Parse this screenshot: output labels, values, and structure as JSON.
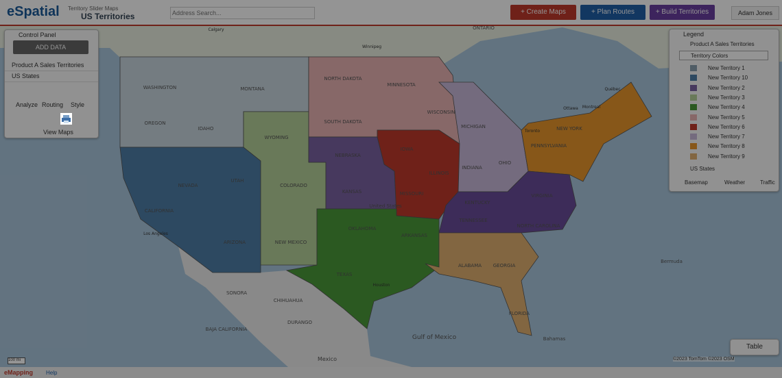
{
  "header": {
    "logo": "eSpatial",
    "map_group": "Territory Slider Maps",
    "map_name": "US Territories",
    "search_placeholder": "Address Search...",
    "buttons": [
      "+ Create Maps",
      "+ Plan Routes",
      "+ Build Territories"
    ],
    "user": "Adam Jones"
  },
  "control_panel": {
    "title": "Control Panel",
    "add_data": "ADD DATA",
    "layers": [
      "Product A Sales Territories",
      "US States"
    ],
    "tools": [
      "Analyze",
      "Routing",
      "Style"
    ],
    "view_maps": "View Maps"
  },
  "legend": {
    "title": "Legend",
    "layer": "Product A Sales Territories",
    "dropdown": "Territory Colors",
    "items": [
      "New Territory 1",
      "New Territory 10",
      "New Territory 2",
      "New Territory 3",
      "New Territory 4",
      "New Territory 5",
      "New Territory 6",
      "New Territory 7",
      "New Territory 8",
      "New Territory 9"
    ],
    "layer2": "US States",
    "tabs": [
      "Basemap",
      "Weather",
      "Traffic"
    ]
  },
  "map": {
    "labels": [
      "Calgary",
      "Winnipeg",
      "ONTARIO",
      "Québec",
      "Montreal",
      "Ottawa",
      "Toronto",
      "WASHINGTON",
      "MONTANA",
      "NORTH DAKOTA",
      "MINNESOTA",
      "SOUTH DAKOTA",
      "WISCONSIN",
      "OREGON",
      "IDAHO",
      "WYOMING",
      "NEVADA",
      "UTAH",
      "COLORADO",
      "CALIFORNIA",
      "ARIZONA",
      "NEW MEXICO",
      "NEBRASKA",
      "KANSAS",
      "IOWA",
      "ILLINOIS",
      "MISSOURI",
      "OKLAHOMA",
      "TEXAS",
      "ARKANSAS",
      "MICHIGAN",
      "OHIO",
      "INDIANA",
      "PENNSYLVANIA",
      "NEW YORK",
      "KENTUCKY",
      "TENNESSEE",
      "VIRGINIA",
      "NORTH CAROLINA",
      "GEORGIA",
      "ALABAMA",
      "FLORIDA",
      "United States",
      "SONORA",
      "CHIHUAHUA",
      "DURANGO",
      "BAJA CALIFORNIA",
      "Gulf of Mexico",
      "Bermuda",
      "Bahamas",
      "Mexico",
      "Los Angeles",
      "Houston"
    ],
    "scale": "100 mi",
    "attribution": "©2023 TomTom ©2023 OSM",
    "table_button": "Table"
  },
  "footer": {
    "brand": "eMapping",
    "help": "Help"
  }
}
